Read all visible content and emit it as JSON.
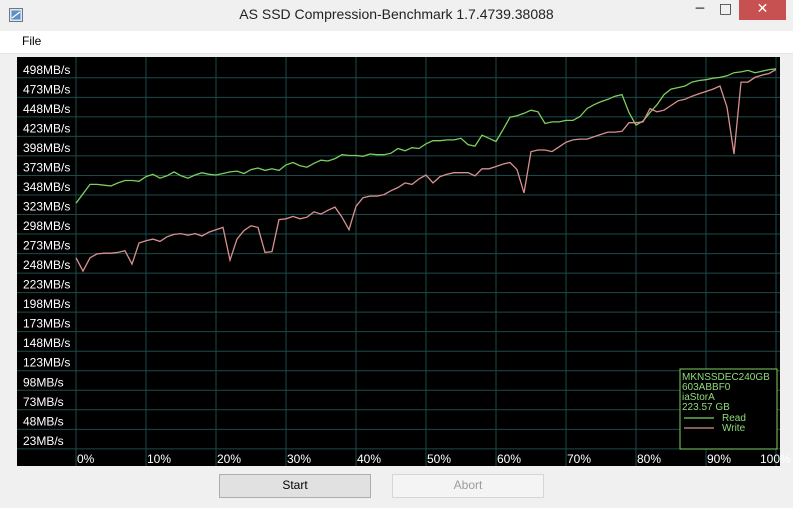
{
  "window": {
    "title": "AS SSD Compression-Benchmark 1.7.4739.38088",
    "minimize": "─",
    "maximize": "□",
    "close": "✕",
    "icon": "app-icon"
  },
  "menu": {
    "file": "File"
  },
  "buttons": {
    "start": "Start",
    "abort": "Abort"
  },
  "info_box": {
    "lines": [
      "MKNSSDEC240GB",
      "603ABBF0",
      "iaStorA",
      "223.57 GB"
    ],
    "legend": [
      {
        "name": "Read",
        "color": "#7bcf5e"
      },
      {
        "name": "Write",
        "color": "#d89090"
      }
    ]
  },
  "chart_data": {
    "type": "line",
    "title": "",
    "y_tick_labels": [
      "498MB/s",
      "473MB/s",
      "448MB/s",
      "423MB/s",
      "398MB/s",
      "373MB/s",
      "348MB/s",
      "323MB/s",
      "298MB/s",
      "273MB/s",
      "248MB/s",
      "223MB/s",
      "198MB/s",
      "173MB/s",
      "148MB/s",
      "123MB/s",
      "98MB/s",
      "73MB/s",
      "48MB/s",
      "23MB/s"
    ],
    "y_ticks": [
      498,
      473,
      448,
      423,
      398,
      373,
      348,
      323,
      298,
      273,
      248,
      223,
      198,
      173,
      148,
      123,
      98,
      73,
      48,
      23
    ],
    "x_tick_labels": [
      "0%",
      "10%",
      "20%",
      "30%",
      "40%",
      "50%",
      "60%",
      "70%",
      "80%",
      "90%",
      "100%"
    ],
    "x_ticks": [
      0,
      10,
      20,
      30,
      40,
      50,
      60,
      70,
      80,
      90,
      100
    ],
    "xlim": [
      0,
      100
    ],
    "ylim": [
      10,
      508
    ],
    "grid": true,
    "series": [
      {
        "name": "Read",
        "color": "#7bcf5e",
        "x": [
          0,
          1,
          2,
          3,
          4,
          5,
          6,
          7,
          8,
          9,
          10,
          11,
          12,
          13,
          14,
          15,
          16,
          17,
          18,
          19,
          20,
          21,
          22,
          23,
          24,
          25,
          26,
          27,
          28,
          29,
          30,
          31,
          32,
          33,
          34,
          35,
          36,
          37,
          38,
          39,
          40,
          41,
          42,
          43,
          44,
          45,
          46,
          47,
          48,
          49,
          50,
          51,
          52,
          53,
          54,
          55,
          56,
          57,
          58,
          59,
          60,
          61,
          62,
          63,
          64,
          65,
          66,
          67,
          68,
          69,
          70,
          71,
          72,
          73,
          74,
          75,
          76,
          77,
          78,
          79,
          80,
          81,
          82,
          83,
          84,
          85,
          86,
          87,
          88,
          89,
          90,
          91,
          92,
          93,
          94,
          95,
          96,
          97,
          98,
          99,
          100
        ],
        "y": [
          326,
          338,
          350,
          350,
          349,
          348,
          352,
          355,
          355,
          354,
          360,
          363,
          358,
          361,
          366,
          361,
          358,
          362,
          365,
          363,
          362,
          364,
          366,
          367,
          364,
          369,
          371,
          368,
          370,
          368,
          375,
          378,
          374,
          372,
          377,
          381,
          380,
          383,
          388,
          387,
          387,
          386,
          389,
          388,
          388,
          390,
          396,
          393,
          397,
          396,
          402,
          406,
          406,
          407,
          407,
          409,
          401,
          399,
          413,
          409,
          405,
          420,
          436,
          438,
          441,
          445,
          443,
          428,
          430,
          430,
          432,
          432,
          437,
          447,
          452,
          456,
          459,
          463,
          465,
          442,
          426,
          431,
          442,
          452,
          465,
          472,
          474,
          476,
          481,
          483,
          484,
          486,
          487,
          489,
          493,
          494,
          496,
          493,
          495,
          497,
          498
        ]
      },
      {
        "name": "Write",
        "color": "#d89090",
        "x": [
          0,
          1,
          2,
          3,
          4,
          5,
          6,
          7,
          8,
          9,
          10,
          11,
          12,
          13,
          14,
          15,
          16,
          17,
          18,
          19,
          20,
          21,
          22,
          23,
          24,
          25,
          26,
          27,
          28,
          29,
          30,
          31,
          32,
          33,
          34,
          35,
          36,
          37,
          38,
          39,
          40,
          41,
          42,
          43,
          44,
          45,
          46,
          47,
          48,
          49,
          50,
          51,
          52,
          53,
          54,
          55,
          56,
          57,
          58,
          59,
          60,
          61,
          62,
          63,
          64,
          65,
          66,
          67,
          68,
          69,
          70,
          71,
          72,
          73,
          74,
          75,
          76,
          77,
          78,
          79,
          80,
          81,
          82,
          83,
          84,
          85,
          86,
          87,
          88,
          89,
          90,
          91,
          92,
          93,
          94,
          95,
          96,
          97,
          98,
          99,
          100
        ],
        "y": [
          256,
          239,
          256,
          261,
          262,
          262,
          263,
          265,
          248,
          275,
          278,
          280,
          277,
          283,
          286,
          287,
          285,
          287,
          284,
          289,
          292,
          295,
          253,
          280,
          291,
          297,
          295,
          263,
          264,
          305,
          306,
          309,
          306,
          308,
          315,
          312,
          317,
          321,
          308,
          292,
          322,
          333,
          335,
          335,
          337,
          342,
          346,
          352,
          350,
          357,
          362,
          352,
          360,
          363,
          365,
          365,
          365,
          361,
          370,
          370,
          373,
          376,
          378,
          369,
          339,
          392,
          394,
          394,
          392,
          398,
          404,
          407,
          408,
          408,
          411,
          414,
          417,
          417,
          418,
          429,
          429,
          430,
          447,
          443,
          445,
          451,
          457,
          459,
          463,
          466,
          469,
          472,
          476,
          449,
          389,
          481,
          481,
          487,
          490,
          492,
          497
        ]
      }
    ]
  }
}
